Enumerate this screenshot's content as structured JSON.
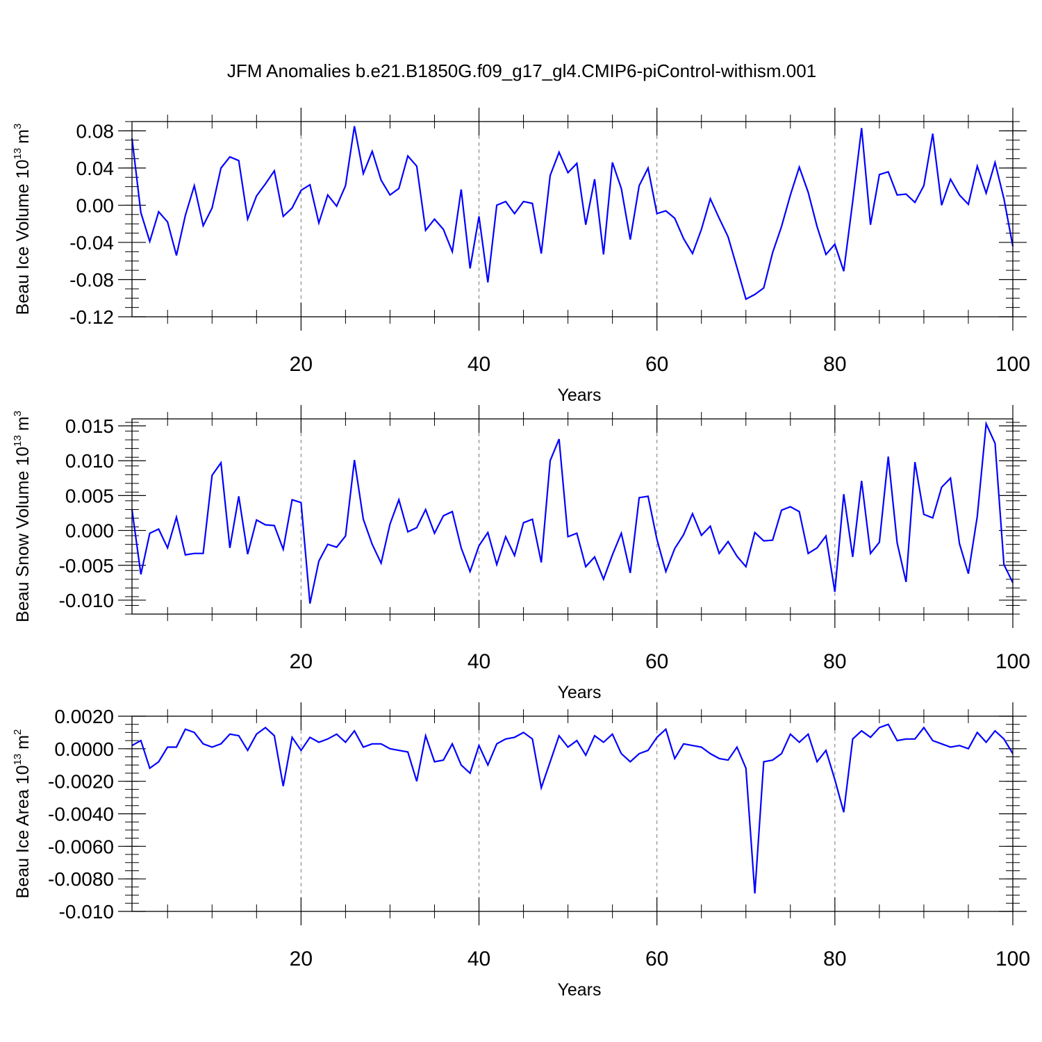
{
  "title": "JFM Anomalies b.e21.B1850G.f09_g17_gl4.CMIP6-piControl-withism.001",
  "chart_data": [
    {
      "type": "line",
      "ylabel_main": "Beau Ice Volume 10",
      "ylabel_exp": "13",
      "ylabel_unit": "m",
      "ylabel_unit_exp": "3",
      "xlabel": "Years",
      "xlim": [
        1,
        100
      ],
      "ylim": [
        -0.12,
        0.09
      ],
      "xticks": [
        20,
        40,
        60,
        80,
        100
      ],
      "yticks": [
        0.08,
        0.04,
        0.0,
        -0.04,
        -0.08,
        -0.12
      ],
      "ytick_labels": [
        "0.08",
        "0.04",
        "0.00",
        "-0.04",
        "-0.08",
        "-0.12"
      ],
      "grid": "vertical dashed",
      "color": "#0000ff",
      "values": [
        0.072,
        -0.008,
        -0.039,
        -0.007,
        -0.018,
        -0.054,
        -0.011,
        0.021,
        -0.022,
        -0.003,
        0.04,
        0.052,
        0.048,
        -0.015,
        0.01,
        0.023,
        0.037,
        -0.012,
        -0.003,
        0.016,
        0.022,
        -0.019,
        0.011,
        -0.001,
        0.021,
        0.085,
        0.034,
        0.058,
        0.027,
        0.011,
        0.018,
        0.053,
        0.042,
        -0.027,
        -0.015,
        -0.026,
        -0.05,
        0.017,
        -0.068,
        -0.012,
        -0.083,
        0.0,
        0.004,
        -0.009,
        0.004,
        0.002,
        -0.052,
        0.032,
        0.057,
        0.035,
        0.045,
        -0.021,
        0.028,
        -0.053,
        0.046,
        0.018,
        -0.037,
        0.021,
        0.04,
        -0.009,
        -0.006,
        -0.014,
        -0.036,
        -0.052,
        -0.026,
        0.007,
        -0.014,
        -0.034,
        -0.067,
        -0.101,
        -0.096,
        -0.089,
        -0.051,
        -0.023,
        0.011,
        0.041,
        0.014,
        -0.023,
        -0.053,
        -0.042,
        -0.071,
        0.004,
        0.083,
        -0.021,
        0.033,
        0.036,
        0.011,
        0.012,
        0.003,
        0.021,
        0.077,
        0.0,
        0.028,
        0.011,
        0.001,
        0.042,
        0.013,
        0.046,
        0.007,
        -0.044
      ]
    },
    {
      "type": "line",
      "ylabel_main": "Beau Snow Volume 10",
      "ylabel_exp": "13",
      "ylabel_unit": "m",
      "ylabel_unit_exp": "3",
      "xlabel": "Years",
      "xlim": [
        1,
        100
      ],
      "ylim": [
        -0.012,
        0.016
      ],
      "xticks": [
        20,
        40,
        60,
        80,
        100
      ],
      "yticks": [
        0.015,
        0.01,
        0.005,
        0.0,
        -0.005,
        -0.01
      ],
      "ytick_labels": [
        "0.015",
        "0.010",
        "0.005",
        "0.000",
        "-0.005",
        "-0.010"
      ],
      "grid": "vertical dashed",
      "color": "#0000ff",
      "values": [
        0.003,
        -0.0063,
        -0.0004,
        0.0002,
        -0.0025,
        0.0019,
        -0.0035,
        -0.0033,
        -0.0033,
        0.0079,
        0.0097,
        -0.0025,
        0.0049,
        -0.0034,
        0.0015,
        0.0008,
        0.0007,
        -0.0027,
        0.0044,
        0.004,
        -0.0105,
        -0.0044,
        -0.002,
        -0.0024,
        -0.0008,
        0.0101,
        0.0016,
        -0.002,
        -0.0047,
        0.0009,
        0.0044,
        -0.0002,
        0.0004,
        0.003,
        -0.0004,
        0.0021,
        0.0027,
        -0.0025,
        -0.0059,
        -0.0022,
        -0.0003,
        -0.0049,
        -0.0009,
        -0.0036,
        0.0011,
        0.0016,
        -0.0046,
        0.01,
        0.0131,
        -0.0009,
        -0.0004,
        -0.0052,
        -0.0038,
        -0.007,
        -0.0035,
        -0.0004,
        -0.0061,
        0.0047,
        0.0049,
        -0.0013,
        -0.0059,
        -0.0026,
        -0.0006,
        0.0024,
        -0.0007,
        0.0006,
        -0.0033,
        -0.0016,
        -0.0037,
        -0.0052,
        -0.0003,
        -0.0015,
        -0.0014,
        0.0029,
        0.0034,
        0.0027,
        -0.0033,
        -0.0025,
        -0.0008,
        -0.0088,
        0.0052,
        -0.0038,
        0.0071,
        -0.0033,
        -0.0017,
        0.0106,
        -0.0018,
        -0.0074,
        0.0098,
        0.0023,
        0.0018,
        0.0062,
        0.0075,
        -0.0019,
        -0.0062,
        0.002,
        0.0153,
        0.0125,
        -0.0049,
        -0.0075
      ]
    },
    {
      "type": "line",
      "ylabel_main": "Beau Ice Area 10",
      "ylabel_exp": "13",
      "ylabel_unit": "m",
      "ylabel_unit_exp": "2",
      "xlabel": "Years",
      "xlim": [
        1,
        100
      ],
      "ylim": [
        -0.01,
        0.002
      ],
      "xticks": [
        20,
        40,
        60,
        80,
        100
      ],
      "yticks": [
        0.002,
        0.0,
        -0.002,
        -0.004,
        -0.006,
        -0.008,
        -0.01
      ],
      "ytick_labels": [
        "0.0020",
        "0.0000",
        "-0.0020",
        "-0.0040",
        "-0.0060",
        "-0.0080",
        "-0.010"
      ],
      "grid": "vertical dashed",
      "color": "#0000ff",
      "values": [
        0.0002,
        0.0005,
        -0.0012,
        -0.0008,
        0.0001,
        0.0001,
        0.0012,
        0.001,
        0.0003,
        0.0001,
        0.0003,
        0.0009,
        0.0008,
        -0.0001,
        0.0009,
        0.0013,
        0.0008,
        -0.0023,
        0.0007,
        -0.0001,
        0.0007,
        0.0004,
        0.0006,
        0.0009,
        0.0004,
        0.0011,
        0.0001,
        0.0003,
        0.0003,
        0.0,
        -0.0001,
        -0.0002,
        -0.002,
        0.0008,
        -0.0008,
        -0.0007,
        0.0003,
        -0.001,
        -0.0015,
        0.0002,
        -0.001,
        0.0003,
        0.0006,
        0.0007,
        0.001,
        0.0006,
        -0.0024,
        -0.0008,
        0.0008,
        0.0001,
        0.0005,
        -0.0004,
        0.0008,
        0.0004,
        0.0009,
        -0.0003,
        -0.0008,
        -0.0003,
        -0.0001,
        0.0007,
        0.0012,
        -0.0006,
        0.0003,
        0.0002,
        0.0001,
        -0.0003,
        -0.0006,
        -0.0007,
        0.0001,
        -0.0012,
        -0.0089,
        -0.0008,
        -0.0007,
        -0.0003,
        0.0009,
        0.0004,
        0.0009,
        -0.0008,
        -0.0001,
        -0.0019,
        -0.0039,
        0.0006,
        0.0011,
        0.0007,
        0.0013,
        0.0015,
        0.0005,
        0.0006,
        0.0006,
        0.0013,
        0.0005,
        0.0003,
        0.0001,
        0.0002,
        0.0,
        0.001,
        0.0004,
        0.0011,
        0.0006,
        -0.0003
      ]
    }
  ]
}
